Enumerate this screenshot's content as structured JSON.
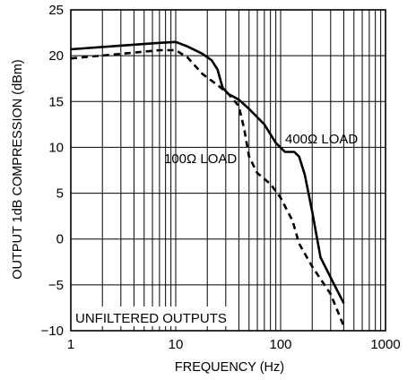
{
  "chart_data": {
    "type": "line",
    "title": "",
    "xlabel": "FREQUENCY (Hz)",
    "ylabel": "OUTPUT 1dB COMPRESSION (dBm)",
    "x_scale": "log",
    "xlim": [
      1,
      1000
    ],
    "ylim": [
      -10,
      25
    ],
    "x_tick_labels": [
      "1",
      "10",
      "100",
      "1000"
    ],
    "y_tick_labels": [
      "25",
      "20",
      "15",
      "10",
      "5",
      "0",
      "−5",
      "−10"
    ],
    "grid": true,
    "series": [
      {
        "name": "400Ω LOAD",
        "style": "solid",
        "points": [
          {
            "x": 1,
            "y": 20.7
          },
          {
            "x": 3,
            "y": 21.1
          },
          {
            "x": 7,
            "y": 21.4
          },
          {
            "x": 10,
            "y": 21.5
          },
          {
            "x": 13,
            "y": 21.0
          },
          {
            "x": 18,
            "y": 20.2
          },
          {
            "x": 22,
            "y": 19.5
          },
          {
            "x": 25,
            "y": 18.5
          },
          {
            "x": 28,
            "y": 16.5
          },
          {
            "x": 32,
            "y": 15.8
          },
          {
            "x": 40,
            "y": 15.2
          },
          {
            "x": 50,
            "y": 14.2
          },
          {
            "x": 70,
            "y": 12.5
          },
          {
            "x": 90,
            "y": 10.5
          },
          {
            "x": 110,
            "y": 9.5
          },
          {
            "x": 135,
            "y": 9.5
          },
          {
            "x": 150,
            "y": 9.0
          },
          {
            "x": 170,
            "y": 7.0
          },
          {
            "x": 200,
            "y": 3.0
          },
          {
            "x": 240,
            "y": -2.0
          },
          {
            "x": 300,
            "y": -4.2
          },
          {
            "x": 400,
            "y": -7.0
          }
        ]
      },
      {
        "name": "100Ω LOAD",
        "style": "dashed",
        "points": [
          {
            "x": 1,
            "y": 19.7
          },
          {
            "x": 3,
            "y": 20.2
          },
          {
            "x": 7,
            "y": 20.6
          },
          {
            "x": 10,
            "y": 20.6
          },
          {
            "x": 13,
            "y": 19.8
          },
          {
            "x": 18,
            "y": 18.0
          },
          {
            "x": 25,
            "y": 16.8
          },
          {
            "x": 32,
            "y": 15.8
          },
          {
            "x": 40,
            "y": 14.5
          },
          {
            "x": 45,
            "y": 12.0
          },
          {
            "x": 50,
            "y": 9.0
          },
          {
            "x": 60,
            "y": 7.2
          },
          {
            "x": 80,
            "y": 6.0
          },
          {
            "x": 100,
            "y": 4.5
          },
          {
            "x": 130,
            "y": 2.0
          },
          {
            "x": 150,
            "y": -0.5
          },
          {
            "x": 200,
            "y": -3.0
          },
          {
            "x": 300,
            "y": -6.0
          },
          {
            "x": 400,
            "y": -9.5
          }
        ]
      }
    ],
    "annotations": [
      {
        "text": "400Ω LOAD"
      },
      {
        "text": "100Ω LOAD"
      },
      {
        "text": "UNFILTERED OUTPUTS"
      }
    ]
  }
}
